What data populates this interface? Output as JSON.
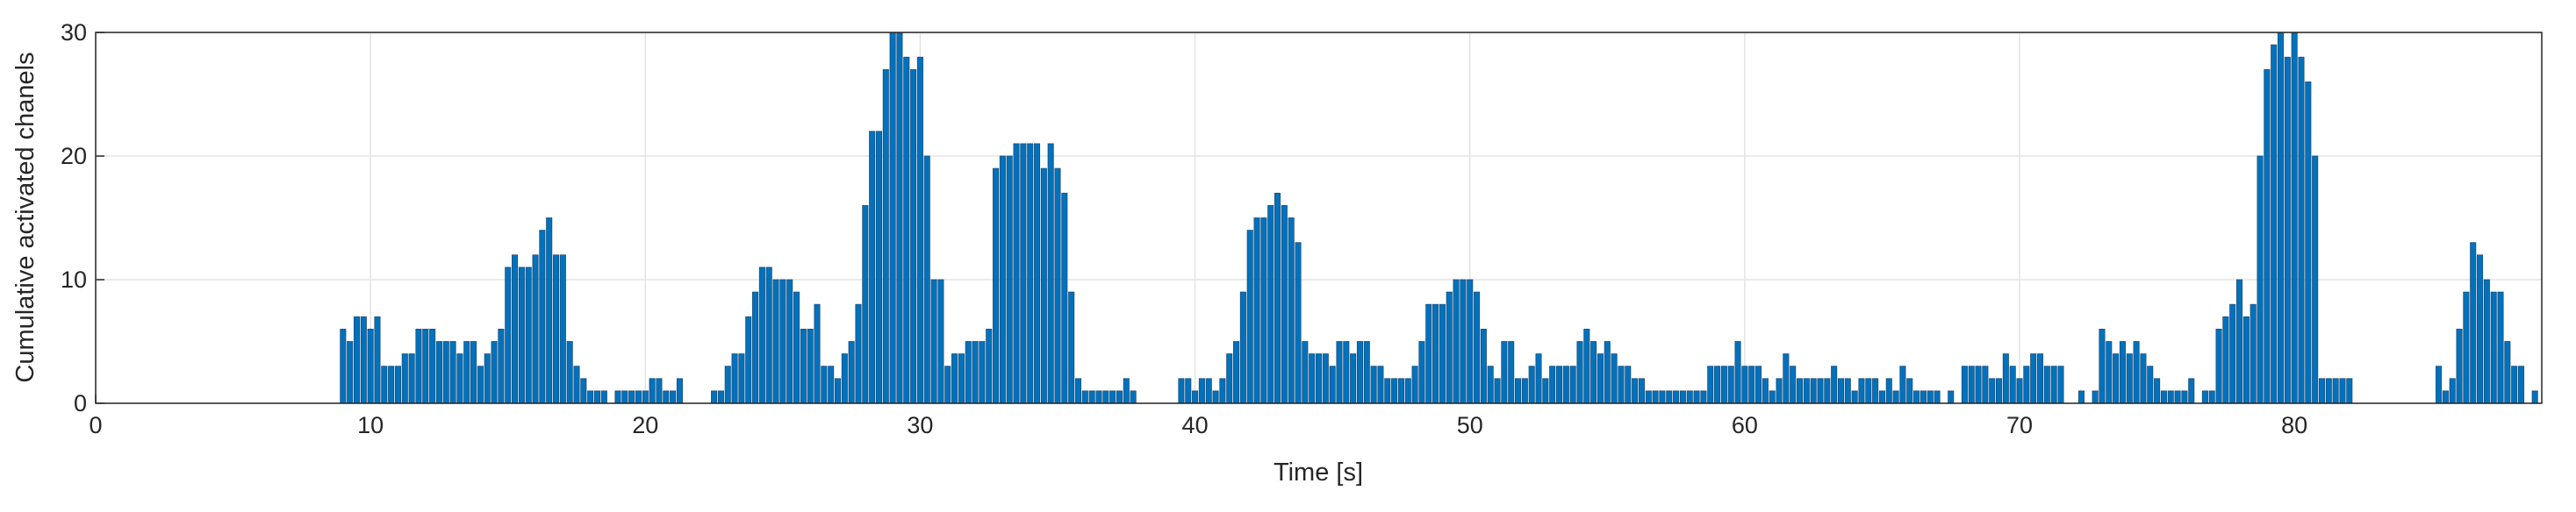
{
  "chart_data": {
    "type": "bar",
    "xlabel": "Time [s]",
    "ylabel": "Cumulative activated chanels",
    "color": "#0072BD",
    "edgecolor": "#1f4e79",
    "bar_width": 0.2,
    "grid": true,
    "xlim": [
      0,
      89
    ],
    "ylim": [
      0,
      30
    ],
    "xticks": [
      0,
      10,
      20,
      30,
      40,
      50,
      60,
      70,
      80
    ],
    "yticks": [
      0,
      10,
      20,
      30
    ],
    "x": [
      9,
      9.25,
      9.5,
      9.75,
      10,
      10.25,
      10.5,
      10.75,
      11,
      11.25,
      11.5,
      11.75,
      12,
      12.25,
      12.5,
      12.75,
      13,
      13.25,
      13.5,
      13.75,
      14,
      14.25,
      14.5,
      14.75,
      15,
      15.25,
      15.5,
      15.75,
      16,
      16.25,
      16.5,
      16.75,
      17,
      17.25,
      17.5,
      17.75,
      18,
      18.25,
      18.5,
      19,
      19.25,
      19.5,
      19.75,
      20,
      20.25,
      20.5,
      20.75,
      21,
      21.25,
      22.5,
      22.75,
      23,
      23.25,
      23.5,
      23.75,
      24,
      24.25,
      24.5,
      24.75,
      25,
      25.25,
      25.5,
      25.75,
      26,
      26.25,
      26.5,
      26.75,
      27,
      27.25,
      27.5,
      27.75,
      28,
      28.25,
      28.5,
      28.75,
      29,
      29.25,
      29.5,
      29.75,
      30,
      30.25,
      30.5,
      30.75,
      31,
      31.25,
      31.5,
      31.75,
      32,
      32.25,
      32.5,
      32.75,
      33,
      33.25,
      33.5,
      33.75,
      34,
      34.25,
      34.5,
      34.75,
      35,
      35.25,
      35.5,
      35.75,
      36,
      36.25,
      36.5,
      36.75,
      37,
      37.25,
      37.5,
      37.75,
      39.5,
      39.75,
      40,
      40.25,
      40.5,
      40.75,
      41,
      41.25,
      41.5,
      41.75,
      42,
      42.25,
      42.5,
      42.75,
      43,
      43.25,
      43.5,
      43.75,
      44,
      44.25,
      44.5,
      44.75,
      45,
      45.25,
      45.5,
      45.75,
      46,
      46.25,
      46.5,
      46.75,
      47,
      47.25,
      47.5,
      47.75,
      48,
      48.25,
      48.5,
      48.75,
      49,
      49.25,
      49.5,
      49.75,
      50,
      50.25,
      50.5,
      50.75,
      51,
      51.25,
      51.5,
      51.75,
      52,
      52.25,
      52.5,
      52.75,
      53,
      53.25,
      53.5,
      53.75,
      54,
      54.25,
      54.5,
      54.75,
      55,
      55.25,
      55.5,
      55.75,
      56,
      56.25,
      56.5,
      56.75,
      57,
      57.25,
      57.5,
      57.75,
      58,
      58.25,
      58.5,
      58.75,
      59,
      59.25,
      59.5,
      59.75,
      60,
      60.25,
      60.5,
      60.75,
      61,
      61.25,
      61.5,
      61.75,
      62,
      62.25,
      62.5,
      62.75,
      63,
      63.25,
      63.5,
      63.75,
      64,
      64.25,
      64.5,
      64.75,
      65,
      65.25,
      65.5,
      65.75,
      66,
      66.25,
      66.5,
      66.75,
      67,
      67.5,
      67.75,
      68,
      68.25,
      68.5,
      68.75,
      69,
      69.25,
      69.5,
      69.75,
      70,
      70.25,
      70.5,
      70.75,
      71,
      71.25,
      71.5,
      71.75,
      72,
      72.25,
      72.5,
      72.75,
      73,
      73.25,
      73.5,
      73.75,
      74,
      74.25,
      74.5,
      74.75,
      75,
      75.25,
      75.5,
      75.75,
      76,
      76.25,
      76.5,
      76.75,
      77,
      77.25,
      77.5,
      77.75,
      78,
      78.25,
      78.5,
      78.75,
      79,
      79.25,
      79.5,
      79.75,
      80,
      80.25,
      80.5,
      80.75,
      81,
      81.25,
      81.5,
      81.75,
      82,
      85.25,
      85.5,
      85.75,
      86,
      86.25,
      86.5,
      86.75,
      87,
      87.25,
      87.5,
      87.75,
      88,
      88.25,
      88.5,
      88.75
    ],
    "values": [
      6,
      5,
      7,
      7,
      6,
      7,
      3,
      3,
      3,
      4,
      4,
      6,
      6,
      6,
      5,
      5,
      5,
      4,
      5,
      5,
      3,
      4,
      5,
      6,
      11,
      12,
      11,
      11,
      12,
      14,
      15,
      12,
      12,
      5,
      3,
      2,
      1,
      1,
      1,
      1,
      1,
      1,
      1,
      1,
      2,
      2,
      1,
      1,
      2,
      1,
      1,
      3,
      4,
      4,
      7,
      9,
      11,
      11,
      10,
      10,
      10,
      9,
      6,
      6,
      8,
      3,
      3,
      2,
      4,
      5,
      8,
      16,
      22,
      22,
      27,
      30,
      30,
      28,
      27,
      28,
      20,
      10,
      10,
      3,
      4,
      4,
      5,
      5,
      5,
      6,
      19,
      20,
      20,
      21,
      21,
      21,
      21,
      19,
      21,
      19,
      17,
      9,
      2,
      1,
      1,
      1,
      1,
      1,
      1,
      2,
      1,
      2,
      2,
      1,
      2,
      2,
      1,
      2,
      4,
      5,
      9,
      14,
      15,
      15,
      16,
      17,
      16,
      15,
      13,
      5,
      4,
      4,
      4,
      3,
      5,
      5,
      4,
      5,
      5,
      3,
      3,
      2,
      2,
      2,
      2,
      3,
      5,
      8,
      8,
      8,
      9,
      10,
      10,
      10,
      9,
      6,
      3,
      2,
      5,
      5,
      2,
      2,
      3,
      4,
      2,
      3,
      3,
      3,
      3,
      5,
      6,
      5,
      4,
      5,
      4,
      3,
      3,
      2,
      2,
      1,
      1,
      1,
      1,
      1,
      1,
      1,
      1,
      1,
      3,
      3,
      3,
      3,
      5,
      3,
      3,
      3,
      2,
      1,
      2,
      4,
      3,
      2,
      2,
      2,
      2,
      2,
      3,
      2,
      2,
      1,
      2,
      2,
      2,
      1,
      2,
      1,
      3,
      2,
      1,
      1,
      1,
      1,
      1,
      0,
      3,
      3,
      3,
      3,
      2,
      2,
      4,
      3,
      2,
      3,
      4,
      4,
      3,
      3,
      3,
      0,
      0,
      1,
      0,
      1,
      6,
      5,
      4,
      5,
      4,
      5,
      4,
      3,
      2,
      1,
      1,
      1,
      1,
      2,
      0,
      1,
      1,
      6,
      7,
      8,
      10,
      7,
      8,
      20,
      27,
      29,
      30,
      28,
      30,
      28,
      26,
      20,
      2,
      2,
      2,
      2,
      2,
      3,
      1,
      2,
      6,
      9,
      13,
      12,
      10,
      9,
      9,
      5,
      3,
      3,
      0,
      1
    ]
  }
}
